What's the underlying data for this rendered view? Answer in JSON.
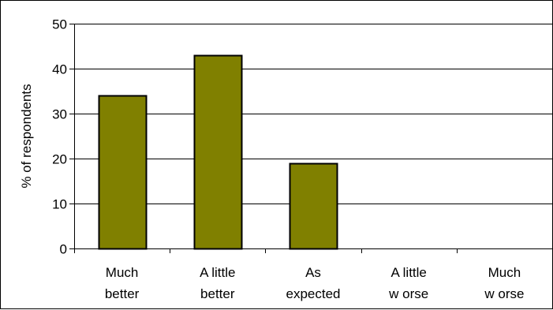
{
  "chart_data": {
    "type": "bar",
    "title": "",
    "xlabel": "",
    "ylabel": "% of respondents",
    "ylim": [
      0,
      50
    ],
    "yticks": [
      0,
      10,
      20,
      30,
      40,
      50
    ],
    "grid": true,
    "categories": [
      [
        "Much",
        "better"
      ],
      [
        "A little",
        "better"
      ],
      [
        "As",
        "expected"
      ],
      [
        "A little",
        "w orse"
      ],
      [
        "Much",
        "w orse"
      ]
    ],
    "values": [
      34,
      43,
      19,
      0,
      0
    ],
    "colors": {
      "bar_fill": "#808000",
      "bar_stroke": "#000000",
      "gridline": "#000000",
      "axis": "#000000"
    }
  }
}
